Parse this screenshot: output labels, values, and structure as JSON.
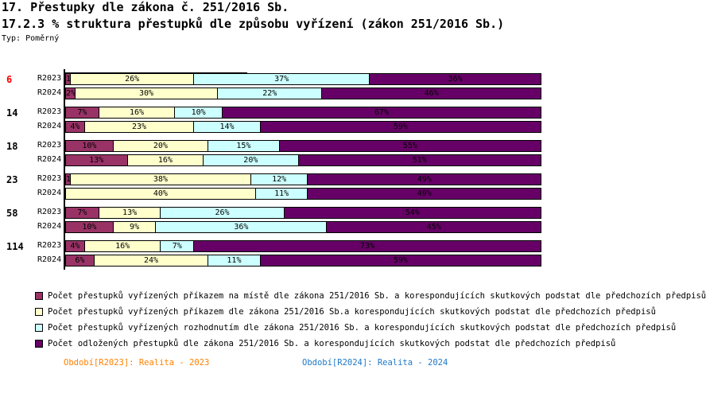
{
  "header": {
    "title": "17. Přestupky dle zákona č. 251/2016 Sb.",
    "subtitle": "17.2.3 % struktura přestupků dle způsobu vyřízení (zákon 251/2016 Sb.)",
    "type_label": "Typ: Poměrný"
  },
  "chart_data": {
    "type": "bar",
    "orientation": "horizontal-stacked-100",
    "title": "17.2.3 % struktura přestupků dle způsobu vyřízení (zákon 251/2016 Sb.)",
    "groups": [
      {
        "label": "6",
        "highlight": true,
        "rows": [
          {
            "period": "R2023",
            "values": [
              1,
              26,
              37,
              36
            ]
          },
          {
            "period": "R2024",
            "values": [
              2,
              30,
              22,
              46
            ]
          }
        ]
      },
      {
        "label": "14",
        "rows": [
          {
            "period": "R2023",
            "values": [
              7,
              16,
              10,
              67
            ]
          },
          {
            "period": "R2024",
            "values": [
              4,
              23,
              14,
              59
            ]
          }
        ]
      },
      {
        "label": "18",
        "rows": [
          {
            "period": "R2023",
            "values": [
              10,
              20,
              15,
              55
            ]
          },
          {
            "period": "R2024",
            "values": [
              13,
              16,
              20,
              51
            ]
          }
        ]
      },
      {
        "label": "23",
        "rows": [
          {
            "period": "R2023",
            "values": [
              1,
              38,
              12,
              49
            ]
          },
          {
            "period": "R2024",
            "values": [
              0,
              40,
              11,
              49
            ]
          }
        ]
      },
      {
        "label": "58",
        "rows": [
          {
            "period": "R2023",
            "values": [
              7,
              13,
              26,
              54
            ]
          },
          {
            "period": "R2024",
            "values": [
              10,
              9,
              36,
              45
            ]
          }
        ]
      },
      {
        "label": "114",
        "rows": [
          {
            "period": "R2023",
            "values": [
              4,
              16,
              7,
              73
            ]
          },
          {
            "period": "R2024",
            "values": [
              6,
              24,
              11,
              59
            ]
          }
        ]
      }
    ],
    "series": [
      {
        "name": "Počet přestupků vyřízených příkazem na místě dle zákona 251/2016 Sb. a korespondujících skutkových podstat dle předchozích předpisů",
        "color": "#993366"
      },
      {
        "name": "Počet přestupků vyřízených příkazem dle zákona 251/2016 Sb.a korespondujících skutkových podstat dle předchozích předpisů",
        "color": "#ffffcc"
      },
      {
        "name": "Počet přestupků vyřízených rozhodnutím dle zákona 251/2016 Sb. a korespondujících skutkových podstat dle předchozích předpisů",
        "color": "#ccffff"
      },
      {
        "name": "Počet odložených přestupků dle zákona 251/2016 Sb. a korespondujících skutkových podstat dle předchozích předpisů",
        "color": "#660066"
      }
    ],
    "xlim": [
      0,
      100
    ],
    "unit": "%"
  },
  "footer": {
    "period1": "Období[R2023]: Realita - 2023",
    "period1_color": "#ff8000",
    "period2": "Období[R2024]: Realita - 2024",
    "period2_color": "#1e78c8"
  }
}
